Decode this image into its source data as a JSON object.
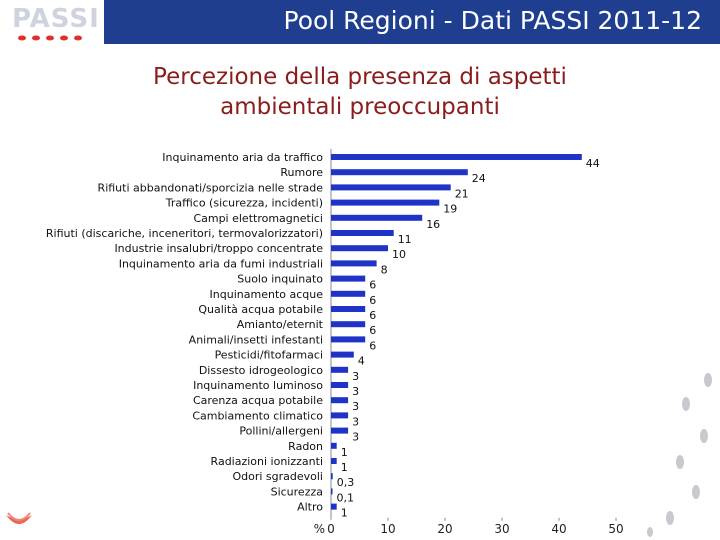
{
  "header": {
    "logo_text": "PASSI",
    "title": "Pool Regioni - Dati PASSI 2011-12"
  },
  "slide": {
    "title_line1": "Percezione della presenza di aspetti",
    "title_line2": "ambientali preoccupanti"
  },
  "colors": {
    "header_bg": "#1f3e8f",
    "title_text": "#8b1c1c",
    "bar": "#1f33c9"
  },
  "chart_data": {
    "type": "bar",
    "orientation": "horizontal",
    "title": "",
    "xlabel": "%",
    "ylabel": "",
    "xlim": [
      0,
      50
    ],
    "xticks": [
      "0",
      "10",
      "20",
      "30",
      "40",
      "50"
    ],
    "grid": false,
    "categories": [
      "Inquinamento aria da traffico",
      "Rumore",
      "Rifiuti abbandonati/sporcizia nelle strade",
      "Traffico (sicurezza, incidenti)",
      "Campi elettromagnetici",
      "Rifiuti (discariche, inceneritori, termovalorizzatori)",
      "Industrie insalubri/troppo concentrate",
      "Inquinamento aria da fumi industriali",
      "Suolo inquinato",
      "Inquinamento acque",
      "Qualità acqua potabile",
      "Amianto/eternit",
      "Animali/insetti infestanti",
      "Pesticidi/fitofarmaci",
      "Dissesto idrogeologico",
      "Inquinamento luminoso",
      "Carenza acqua potabile",
      "Cambiamento climatico",
      "Pollini/allergeni",
      "Radon",
      "Radiazioni ionizzanti",
      "Odori sgradevoli",
      "Sicurezza",
      "Altro"
    ],
    "values": [
      44,
      24,
      21,
      19,
      16,
      11,
      10,
      8,
      6,
      6,
      6,
      6,
      6,
      4,
      3,
      3,
      3,
      3,
      3,
      1,
      1,
      0.3,
      0.1,
      1
    ],
    "value_labels": [
      "44",
      "24",
      "21",
      "19",
      "16",
      "11",
      "10",
      "8",
      "6",
      "6",
      "6",
      "6",
      "6",
      "4",
      "3",
      "3",
      "3",
      "3",
      "3",
      "1",
      "1",
      "0,3",
      "0,1",
      "1"
    ]
  }
}
